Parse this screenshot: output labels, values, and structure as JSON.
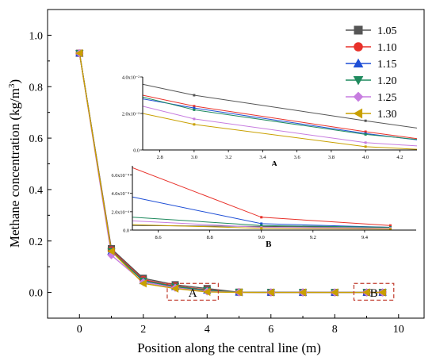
{
  "chart_data": {
    "type": "line",
    "xlabel": "Position along the central line (m)",
    "ylabel": "Methane concentration (kg/m",
    "ylabel_sup": "3",
    "ylabel_close": ")",
    "xlim": [
      -1,
      10.8
    ],
    "ylim": [
      -0.1,
      1.1
    ],
    "xticks": [
      "0",
      "2",
      "4",
      "6",
      "8",
      "10"
    ],
    "yticks": [
      "0.0",
      "0.2",
      "0.4",
      "0.6",
      "0.8",
      "1.0"
    ],
    "x": [
      0,
      1,
      2,
      3,
      4,
      5,
      6,
      7,
      8,
      9,
      9.5
    ],
    "legend_position": "top-right",
    "series": [
      {
        "name": "1.05",
        "color": "#555555",
        "marker": "square",
        "values": [
          0.93,
          0.17,
          0.055,
          0.03,
          0.015,
          0.001,
          0.0003,
          0.0002,
          0.0001,
          0.0001,
          0.0001
        ]
      },
      {
        "name": "1.10",
        "color": "#e8312a",
        "marker": "circle",
        "values": [
          0.93,
          0.165,
          0.05,
          0.025,
          0.01,
          0.001,
          0.0003,
          0.0002,
          0.0001,
          0.0001,
          0.0001
        ]
      },
      {
        "name": "1.15",
        "color": "#1f4fd6",
        "marker": "triangle-up",
        "values": [
          0.93,
          0.16,
          0.045,
          0.022,
          0.008,
          0.0008,
          0.0002,
          0.0001,
          0.0001,
          0.0001,
          0.0001
        ]
      },
      {
        "name": "1.20",
        "color": "#1f8a5e",
        "marker": "triangle-down",
        "values": [
          0.93,
          0.16,
          0.045,
          0.023,
          0.008,
          0.0008,
          0.0002,
          0.0001,
          0.0001,
          0.0001,
          0.0001
        ]
      },
      {
        "name": "1.25",
        "color": "#c77de0",
        "marker": "diamond",
        "values": [
          0.93,
          0.145,
          0.04,
          0.018,
          0.004,
          0.0005,
          0.0001,
          0.0001,
          0.0001,
          0.0001,
          0.0001
        ]
      },
      {
        "name": "1.30",
        "color": "#c9a000",
        "marker": "triangle-left",
        "values": [
          0.93,
          0.16,
          0.035,
          0.015,
          0.002,
          0.0003,
          0.0001,
          0.0001,
          0.0001,
          0.0001,
          0.0001
        ]
      }
    ],
    "regions": [
      {
        "label": "A",
        "x": [
          2.75,
          4.35
        ],
        "y": [
          -0.03,
          0.035
        ]
      },
      {
        "label": "B",
        "x": [
          8.6,
          9.85
        ],
        "y": [
          -0.03,
          0.035
        ]
      }
    ],
    "insets": [
      {
        "label": "A",
        "xlim": [
          2.7,
          4.3
        ],
        "ylim": [
          0,
          0.04
        ],
        "xticks": [
          "2.8",
          "3.0",
          "3.2",
          "3.4",
          "3.6",
          "3.8",
          "4.0",
          "4.2"
        ],
        "xtick_values": [
          2.8,
          3.0,
          3.2,
          3.4,
          3.6,
          3.8,
          4.0,
          4.2
        ],
        "yticks": [
          "0.0",
          "2.0x10⁻²",
          "4.0x10⁻²"
        ],
        "ytick_values": [
          0,
          0.02,
          0.04
        ],
        "x": [
          2.7,
          3.0,
          4.0,
          4.3
        ],
        "series": [
          {
            "name": "1.05",
            "values": [
              0.036,
              0.03,
              0.016,
              0.012
            ]
          },
          {
            "name": "1.10",
            "values": [
              0.03,
              0.024,
              0.01,
              0.0062
            ]
          },
          {
            "name": "1.15",
            "values": [
              0.028,
              0.023,
              0.009,
              0.0055
            ]
          },
          {
            "name": "1.20",
            "values": [
              0.029,
              0.022,
              0.0085,
              0.0058
            ]
          },
          {
            "name": "1.25",
            "values": [
              0.024,
              0.017,
              0.004,
              0.0022
            ]
          },
          {
            "name": "1.30",
            "values": [
              0.02,
              0.014,
              0.0018,
              0.0004
            ]
          }
        ]
      },
      {
        "label": "B",
        "xlim": [
          8.5,
          9.6
        ],
        "ylim": [
          0,
          0.0007
        ],
        "xticks": [
          "8.6",
          "8.8",
          "9.0",
          "9.2",
          "9.4"
        ],
        "xtick_values": [
          8.6,
          8.8,
          9.0,
          9.2,
          9.4
        ],
        "yticks": [
          "0.0",
          "2.0x10⁻⁴",
          "4.0x10⁻⁴",
          "6.0x10⁻⁴"
        ],
        "ytick_values": [
          0,
          0.0002,
          0.0004,
          0.0006
        ],
        "x": [
          8.5,
          9.0,
          9.5
        ],
        "series": [
          {
            "name": "1.05",
            "values": [
              5e-05,
              4e-05,
              3e-05
            ]
          },
          {
            "name": "1.10",
            "values": [
              0.00068,
              0.00014,
              5e-05
            ]
          },
          {
            "name": "1.15",
            "values": [
              0.00036,
              7e-05,
              3e-05
            ]
          },
          {
            "name": "1.20",
            "values": [
              0.00014,
              5e-05,
              3e-05
            ]
          },
          {
            "name": "1.25",
            "values": [
              0.0001,
              3e-05,
              2e-05
            ]
          },
          {
            "name": "1.30",
            "values": [
              6e-05,
              2e-05,
              1e-05
            ]
          }
        ]
      }
    ]
  }
}
